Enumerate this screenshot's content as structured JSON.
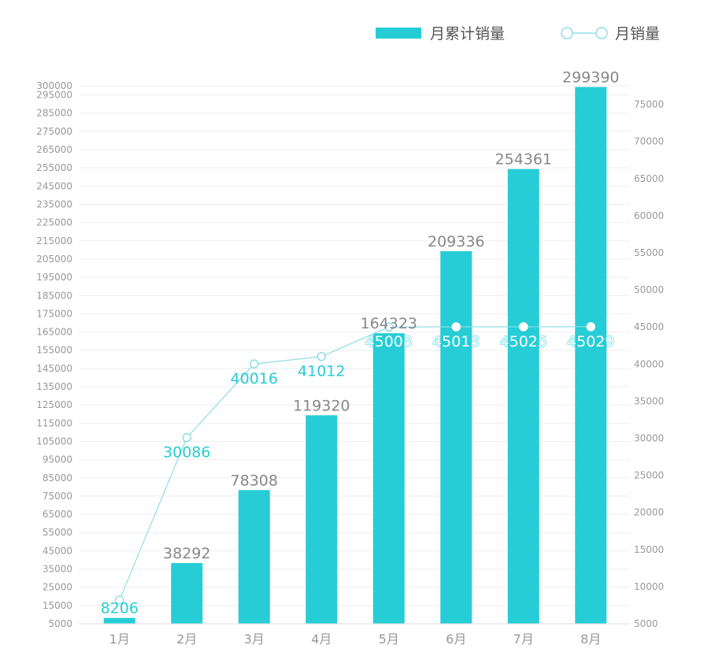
{
  "chart_data": {
    "type": "bar",
    "categories": [
      "1月",
      "2月",
      "3月",
      "4月",
      "5月",
      "6月",
      "7月",
      "8月"
    ],
    "series": [
      {
        "name": "月累计销量",
        "type": "bar",
        "axis": "left",
        "values": [
          8206,
          38292,
          78308,
          119320,
          164323,
          209336,
          254361,
          299390
        ]
      },
      {
        "name": "月销量",
        "type": "line",
        "axis": "right",
        "values": [
          8206,
          30086,
          40016,
          41012,
          45003,
          45013,
          45025,
          45029
        ]
      }
    ],
    "y_left": {
      "min": 5000,
      "max": 300000,
      "ticks": [
        5000,
        15000,
        25000,
        35000,
        45000,
        55000,
        65000,
        75000,
        85000,
        95000,
        105000,
        115000,
        125000,
        135000,
        145000,
        155000,
        165000,
        175000,
        185000,
        195000,
        205000,
        215000,
        225000,
        235000,
        245000,
        255000,
        265000,
        275000,
        285000,
        295000,
        300000
      ]
    },
    "y_right": {
      "min": 5000,
      "max": 77500,
      "ticks": [
        5000,
        10000,
        15000,
        20000,
        25000,
        30000,
        35000,
        40000,
        45000,
        50000,
        55000,
        60000,
        65000,
        70000,
        75000
      ]
    },
    "legend": {
      "placement": "top-right",
      "items": [
        "月累计销量",
        "月销量"
      ]
    },
    "colors": {
      "bar": "#26CDD6",
      "line": "#8FDDE6",
      "grid": "#EEEEEE",
      "axis_text": "#999999",
      "bar_label": "#888888",
      "line_label": "#26CDD6"
    },
    "grid": true
  }
}
